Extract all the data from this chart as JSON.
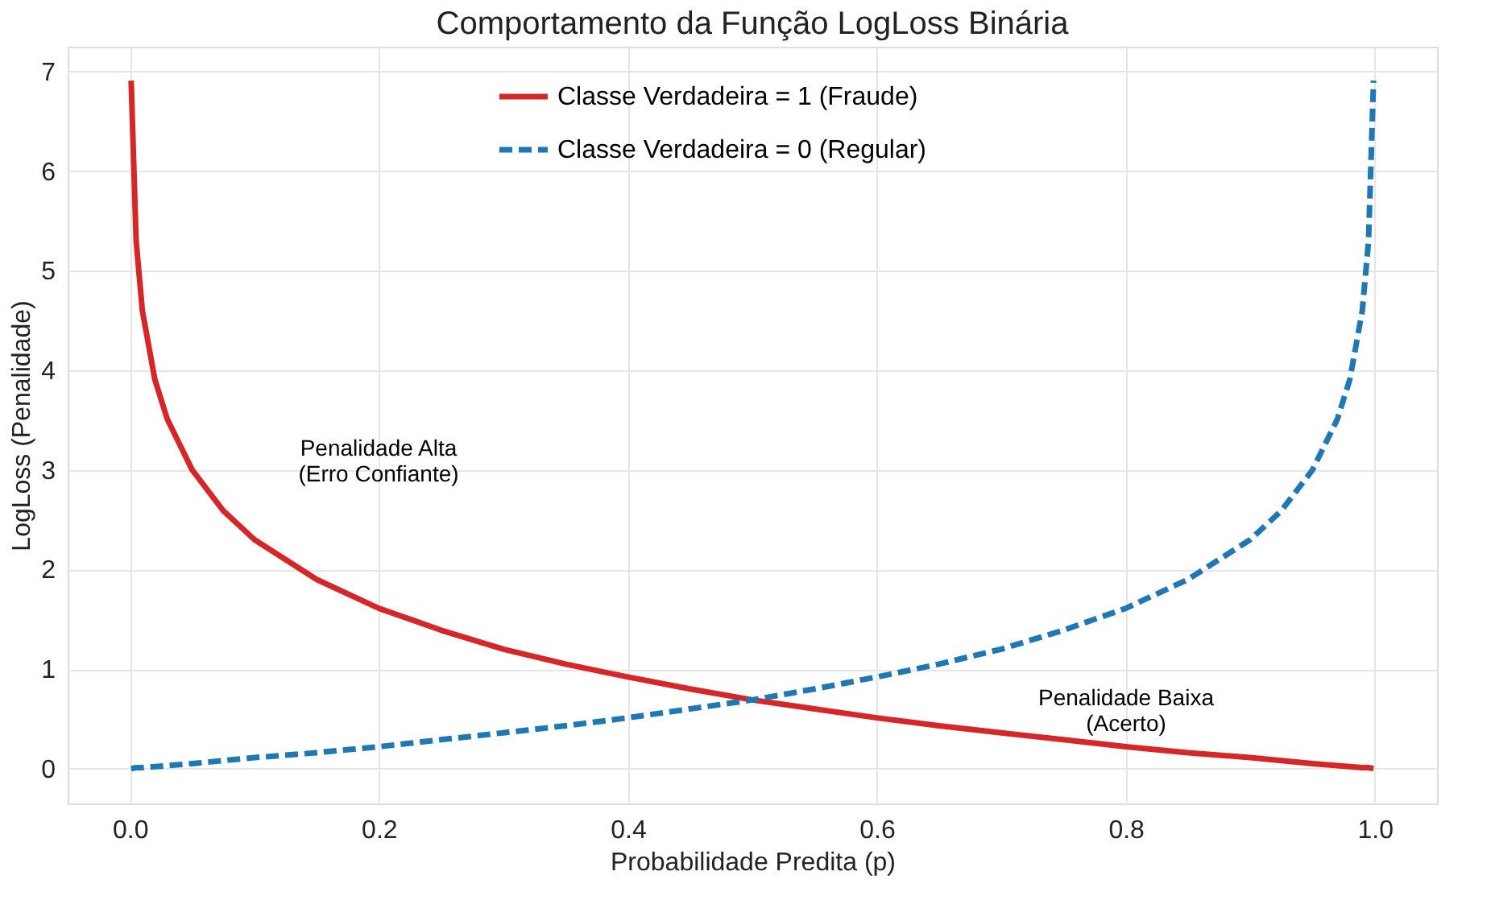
{
  "chart_data": {
    "type": "line",
    "title": "Comportamento da Função LogLoss Binária",
    "xlabel": "Probabilidade Predita (p)",
    "ylabel": "LogLoss (Penalidade)",
    "x": [
      0.001,
      0.005,
      0.01,
      0.02,
      0.03,
      0.05,
      0.075,
      0.1,
      0.15,
      0.2,
      0.25,
      0.3,
      0.35,
      0.4,
      0.45,
      0.5,
      0.55,
      0.6,
      0.65,
      0.7,
      0.75,
      0.8,
      0.85,
      0.9,
      0.925,
      0.95,
      0.97,
      0.98,
      0.99,
      0.995,
      0.999
    ],
    "series": [
      {
        "name": "Classe Verdadeira = 1 (Fraude)",
        "color": "#d62728",
        "line_style": "solid",
        "values": [
          6.91,
          5.3,
          4.6,
          3.91,
          3.51,
          3.0,
          2.59,
          2.3,
          1.9,
          1.61,
          1.39,
          1.2,
          1.05,
          0.92,
          0.8,
          0.69,
          0.6,
          0.51,
          0.43,
          0.36,
          0.29,
          0.22,
          0.16,
          0.11,
          0.08,
          0.05,
          0.03,
          0.02,
          0.01,
          0.01,
          0.0
        ]
      },
      {
        "name": "Classe Verdadeira = 0 (Regular)",
        "color": "#1f77b4",
        "line_style": "dashed",
        "values": [
          0.0,
          0.01,
          0.01,
          0.02,
          0.03,
          0.05,
          0.08,
          0.11,
          0.16,
          0.22,
          0.29,
          0.36,
          0.43,
          0.51,
          0.6,
          0.69,
          0.8,
          0.92,
          1.05,
          1.2,
          1.39,
          1.61,
          1.9,
          2.3,
          2.59,
          3.0,
          3.51,
          3.91,
          4.6,
          5.3,
          6.91
        ]
      }
    ],
    "xlim": [
      -0.05,
      1.05
    ],
    "xticks": [
      {
        "value": 0,
        "label": "0.0"
      },
      {
        "value": 0.2,
        "label": "0.2"
      },
      {
        "value": 0.4,
        "label": "0.4"
      },
      {
        "value": 0.6,
        "label": "0.6"
      },
      {
        "value": 0.8,
        "label": "0.8"
      },
      {
        "value": 1,
        "label": "1.0"
      }
    ],
    "ylim": [
      -0.35,
      7.25
    ],
    "yticks": [
      0,
      1,
      2,
      3,
      4,
      5,
      6,
      7
    ],
    "annotations": [
      "Penalidade Alta\n(Erro Confiante)",
      "Penalidade Baixa\n(Acerto)"
    ],
    "grid": true,
    "legend": "top"
  }
}
